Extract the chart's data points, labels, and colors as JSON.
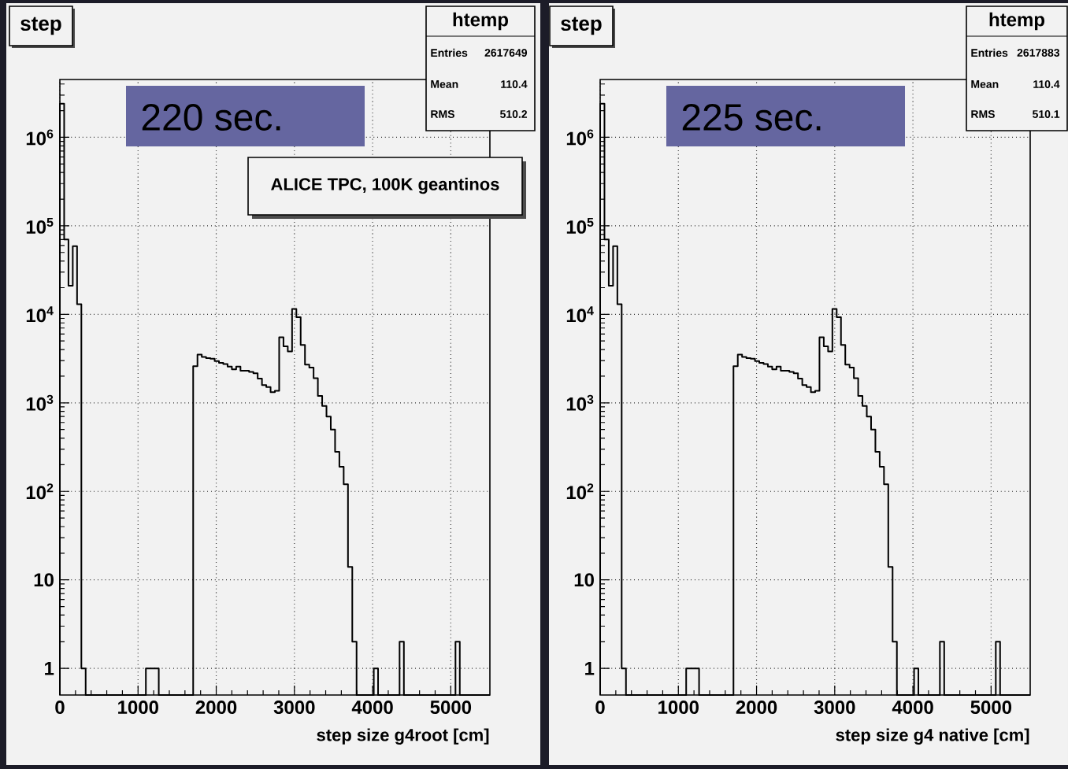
{
  "chart_data": [
    {
      "type": "histogram",
      "title": "step",
      "xlabel": "step size g4root [cm]",
      "color": "#000000",
      "bins": [
        0,
        55,
        110,
        165,
        220,
        275,
        330,
        385,
        440,
        495,
        550,
        605,
        660,
        715,
        770,
        825,
        880,
        935,
        990,
        1045,
        1100,
        1155,
        1210,
        1265,
        1320,
        1375,
        1430,
        1485,
        1540,
        1595,
        1650,
        1705,
        1760,
        1815,
        1870,
        1925,
        1980,
        2035,
        2090,
        2145,
        2200,
        2255,
        2310,
        2365,
        2420,
        2475,
        2530,
        2585,
        2640,
        2695,
        2750,
        2805,
        2860,
        2915,
        2970,
        3025,
        3080,
        3135,
        3190,
        3245,
        3300,
        3355,
        3410,
        3465,
        3520,
        3575,
        3630,
        3685,
        3740,
        3795,
        3850,
        3905,
        3960,
        4015,
        4070,
        4125,
        4180,
        4235,
        4290,
        4345,
        4400,
        4455,
        4510,
        4565,
        4620,
        4675,
        4730,
        4785,
        4840,
        4895,
        4950,
        5005,
        5060,
        5115,
        5170,
        5225,
        5280,
        5335,
        5390,
        5445,
        5500
      ],
      "values": [
        2400000,
        70000,
        21000,
        59000,
        13000,
        1,
        null,
        null,
        null,
        null,
        null,
        null,
        null,
        null,
        null,
        null,
        null,
        null,
        null,
        null,
        1,
        1,
        1,
        null,
        null,
        null,
        null,
        null,
        null,
        null,
        null,
        2600,
        3500,
        3300,
        3200,
        3150,
        2970,
        2830,
        2740,
        2570,
        2390,
        2570,
        2310,
        2300,
        2230,
        2160,
        1880,
        1590,
        1510,
        1320,
        1370,
        5500,
        4350,
        3800,
        11500,
        9300,
        4500,
        2700,
        2500,
        1900,
        1200,
        920,
        700,
        500,
        280,
        190,
        120,
        14,
        2,
        null,
        null,
        null,
        null,
        1,
        null,
        null,
        null,
        null,
        null,
        2,
        null,
        null,
        null,
        null,
        null,
        null,
        null,
        null,
        null,
        null,
        null,
        null,
        2,
        null,
        null,
        null,
        null,
        null,
        null,
        null
      ],
      "xlim": [
        0,
        5500
      ],
      "ylim": [
        0.5,
        4500000
      ],
      "xticks": [
        0,
        1000,
        2000,
        3000,
        4000,
        5000
      ],
      "yticks": [
        1,
        10,
        {
          "value": 100,
          "label": "10$^{2}$"
        },
        {
          "value": 1000,
          "label": "10$^{3}$"
        },
        {
          "value": 10000,
          "label": "10$^{4}$"
        },
        {
          "value": 100000,
          "label": "10$^{5}$"
        },
        {
          "value": 1000000,
          "label": "10$^{6}$"
        }
      ],
      "log": "y",
      "grid": true,
      "annotations": [
        "htemp",
        "Entries",
        "2617649",
        "Mean",
        "110.4",
        "RMS",
        "510.2",
        "220 sec.",
        "ALICE TPC, 100K geantinos"
      ]
    },
    {
      "type": "histogram",
      "title": "step",
      "xlabel": "step size g4 native [cm]",
      "color": "#000000",
      "bins": [
        0,
        55,
        110,
        165,
        220,
        275,
        330,
        385,
        440,
        495,
        550,
        605,
        660,
        715,
        770,
        825,
        880,
        935,
        990,
        1045,
        1100,
        1155,
        1210,
        1265,
        1320,
        1375,
        1430,
        1485,
        1540,
        1595,
        1650,
        1705,
        1760,
        1815,
        1870,
        1925,
        1980,
        2035,
        2090,
        2145,
        2200,
        2255,
        2310,
        2365,
        2420,
        2475,
        2530,
        2585,
        2640,
        2695,
        2750,
        2805,
        2860,
        2915,
        2970,
        3025,
        3080,
        3135,
        3190,
        3245,
        3300,
        3355,
        3410,
        3465,
        3520,
        3575,
        3630,
        3685,
        3740,
        3795,
        3850,
        3905,
        3960,
        4015,
        4070,
        4125,
        4180,
        4235,
        4290,
        4345,
        4400,
        4455,
        4510,
        4565,
        4620,
        4675,
        4730,
        4785,
        4840,
        4895,
        4950,
        5005,
        5060,
        5115,
        5170,
        5225,
        5280,
        5335,
        5390,
        5445,
        5500
      ],
      "values": [
        2400000,
        70000,
        21000,
        59000,
        13000,
        1,
        null,
        null,
        null,
        null,
        null,
        null,
        null,
        null,
        null,
        null,
        null,
        null,
        null,
        null,
        1,
        1,
        1,
        null,
        null,
        null,
        null,
        null,
        null,
        null,
        null,
        2600,
        3500,
        3300,
        3200,
        3150,
        2970,
        2830,
        2740,
        2570,
        2390,
        2570,
        2310,
        2300,
        2230,
        2160,
        1880,
        1590,
        1510,
        1320,
        1370,
        5500,
        4350,
        3800,
        11500,
        9300,
        4500,
        2700,
        2500,
        1900,
        1200,
        920,
        700,
        500,
        280,
        190,
        120,
        14,
        2,
        null,
        null,
        null,
        null,
        1,
        null,
        null,
        null,
        null,
        null,
        2,
        null,
        null,
        null,
        null,
        null,
        null,
        null,
        null,
        null,
        null,
        null,
        null,
        2,
        null,
        null,
        null,
        null,
        null,
        null,
        null
      ],
      "xlim": [
        0,
        5500
      ],
      "ylim": [
        0.5,
        4500000
      ],
      "xticks": [
        0,
        1000,
        2000,
        3000,
        4000,
        5000
      ],
      "yticks": [
        1,
        10,
        {
          "value": 100,
          "label": "10$^{2}$"
        },
        {
          "value": 1000,
          "label": "10$^{3}$"
        },
        {
          "value": 10000,
          "label": "10$^{4}$"
        },
        {
          "value": 100000,
          "label": "10$^{5}$"
        },
        {
          "value": 1000000,
          "label": "10$^{6}$"
        }
      ],
      "log": "y",
      "grid": true,
      "annotations": [
        "htemp",
        "Entries",
        "2617883",
        "Mean",
        "110.4",
        "RMS",
        "510.1",
        "225 sec."
      ]
    }
  ]
}
